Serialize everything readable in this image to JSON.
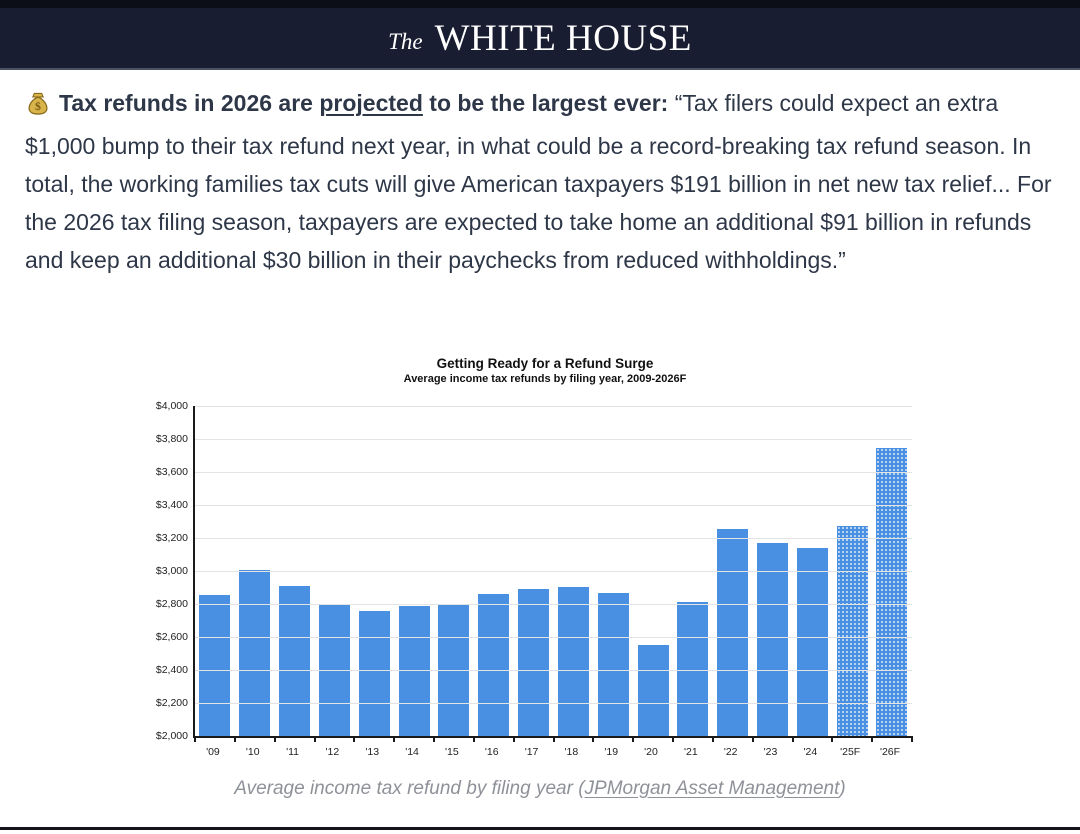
{
  "header": {
    "brand_prefix": "The",
    "brand_name": "WHITE HOUSE"
  },
  "article": {
    "money_bag_icon": "money-bag",
    "lead_bold_pre": "Tax refunds in 2026 are ",
    "lead_underlined": "projected",
    "lead_bold_post": " to be the largest ever:",
    "quote": " “Tax filers could expect an extra $1,000 bump to their tax refund next year, in what could be a record-breaking tax refund season. In total, the working families tax cuts will give American taxpayers $191 billion in net new tax relief... For the 2026 tax filing season, taxpayers are expected to take home an additional $91 billion in refunds and keep an additional $30 billion in their paychecks from reduced withholdings.”"
  },
  "chart_data": {
    "type": "bar",
    "title": "Getting Ready for a Refund Surge",
    "subtitle": "Average income tax refunds by filing year, 2009-2026F",
    "categories": [
      "'09",
      "'10",
      "'11",
      "'12",
      "'13",
      "'14",
      "'15",
      "'16",
      "'17",
      "'18",
      "'19",
      "'20",
      "'21",
      "'22",
      "'23",
      "'24",
      "'25F",
      "'26F"
    ],
    "values": [
      2855,
      3005,
      2910,
      2803,
      2755,
      2790,
      2797,
      2858,
      2893,
      2905,
      2869,
      2549,
      2815,
      3252,
      3167,
      3138,
      3275,
      3743
    ],
    "forecast_mask": [
      false,
      false,
      false,
      false,
      false,
      false,
      false,
      false,
      false,
      false,
      false,
      false,
      false,
      false,
      false,
      false,
      true,
      true
    ],
    "ylim": [
      2000,
      4000
    ],
    "ytick_step": 200,
    "ytick_labels": [
      "$2,000",
      "$2,200",
      "$2,400",
      "$2,600",
      "$2,800",
      "$3,000",
      "$3,200",
      "$3,400",
      "$3,600",
      "$3,800",
      "$4,000"
    ],
    "grid": true,
    "legend": "none",
    "bar_color": "#4a90e2",
    "forecast_style": "dotted-pattern"
  },
  "caption": {
    "text_pre": "Average income tax refund by filing year (",
    "link_text": "JPMorgan Asset Management",
    "text_post": ")"
  },
  "colors": {
    "header_bg": "#191d31",
    "header_top_strip": "#0c0e17",
    "header_rule": "#4b5263",
    "body_text": "#2e3748",
    "bar_blue": "#4a90e2",
    "grid_line": "#e3e3e3",
    "axis": "#1a1a1a",
    "caption_gray": "#8e9298",
    "bottom_rule": "#141419"
  }
}
